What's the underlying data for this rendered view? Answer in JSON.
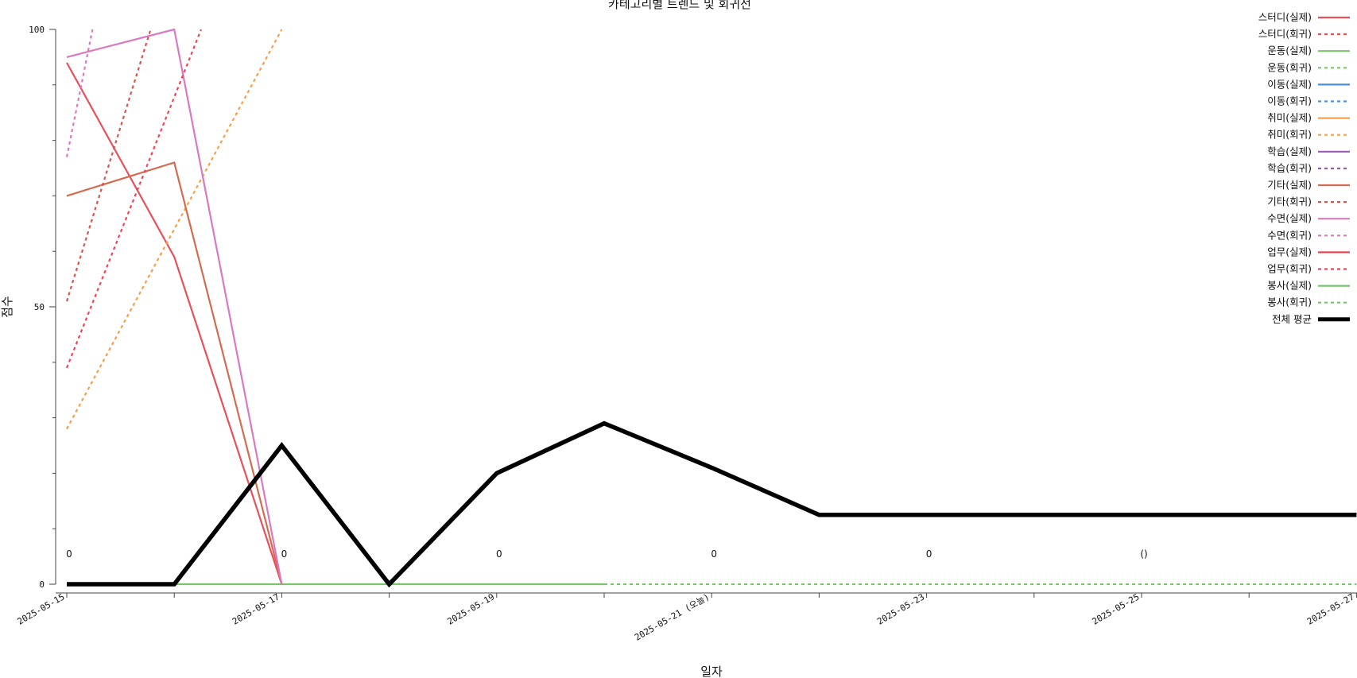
{
  "chart_data": {
    "type": "line",
    "title": "카테고리별 트렌드 및 회귀선",
    "xlabel": "일자",
    "ylabel": "점수",
    "ylim": [
      0,
      100
    ],
    "yticks": [
      0,
      50,
      100
    ],
    "x_dates": [
      "2025-05-15",
      "2025-05-16",
      "2025-05-17",
      "2025-05-18",
      "2025-05-19",
      "2025-05-20",
      "2025-05-21",
      "2025-05-22",
      "2025-05-23",
      "2025-05-24",
      "2025-05-25",
      "2025-05-26",
      "2025-05-27"
    ],
    "x_tick_labels": [
      {
        "date": "2025-05-15",
        "label": "2025-05-15"
      },
      {
        "date": "2025-05-17",
        "label": "2025-05-17"
      },
      {
        "date": "2025-05-19",
        "label": "2025-05-19"
      },
      {
        "date": "2025-05-21",
        "label": "2025-05-21 (오늘)"
      },
      {
        "date": "2025-05-23",
        "label": "2025-05-23"
      },
      {
        "date": "2025-05-25",
        "label": "2025-05-25"
      },
      {
        "date": "2025-05-27",
        "label": "2025-05-27"
      }
    ],
    "zero_annotations": [
      {
        "date": "2025-05-15",
        "text": "0"
      },
      {
        "date": "2025-05-17",
        "text": "0"
      },
      {
        "date": "2025-05-19",
        "text": "0"
      },
      {
        "date": "2025-05-21",
        "text": "0"
      },
      {
        "date": "2025-05-23",
        "text": "0"
      },
      {
        "date": "2025-05-25",
        "text": "()"
      }
    ],
    "legend_position": "top-right",
    "grid": false,
    "series": [
      {
        "name": "스터디(실제)",
        "color": "#e8505b",
        "style": "solid",
        "x": [
          "2025-05-15",
          "2025-05-16",
          "2025-05-17"
        ],
        "y": [
          94,
          59,
          0
        ]
      },
      {
        "name": "스터디(회귀)",
        "color": "#e8505b",
        "style": "dashed",
        "x": [],
        "y": []
      },
      {
        "name": "운동(실제)",
        "color": "#7ac36a",
        "style": "solid",
        "x": [
          "2025-05-16",
          "2025-05-17",
          "2025-05-18",
          "2025-05-19",
          "2025-05-20"
        ],
        "y": [
          0,
          0,
          0,
          0,
          0
        ]
      },
      {
        "name": "운동(회귀)",
        "color": "#7ac36a",
        "style": "dashed",
        "x": [],
        "y": []
      },
      {
        "name": "이동(실제)",
        "color": "#4a90d9",
        "style": "solid",
        "x": [],
        "y": []
      },
      {
        "name": "이동(회귀)",
        "color": "#4a90d9",
        "style": "dashed",
        "x": [],
        "y": []
      },
      {
        "name": "취미(실제)",
        "color": "#f5a04a",
        "style": "solid",
        "x": [],
        "y": []
      },
      {
        "name": "취미(회귀)",
        "color": "#f5a04a",
        "style": "dashed",
        "x": [
          "2025-05-15",
          "2025-05-17"
        ],
        "y": [
          28,
          100
        ]
      },
      {
        "name": "학습(실제)",
        "color": "#9b59b6",
        "style": "solid",
        "x": [],
        "y": []
      },
      {
        "name": "학습(회귀)",
        "color": "#9b59b6",
        "style": "dashed",
        "x": [],
        "y": []
      },
      {
        "name": "기타(실제)",
        "color": "#d36b4f",
        "style": "solid",
        "x": [
          "2025-05-15",
          "2025-05-16",
          "2025-05-17"
        ],
        "y": [
          70,
          76,
          0
        ]
      },
      {
        "name": "기타(회귀)",
        "color": "#d9534f",
        "style": "dashed",
        "x": [
          "2025-05-15",
          "2025-05-15.78"
        ],
        "y": [
          51,
          100
        ]
      },
      {
        "name": "수면(실제)",
        "color": "#d97ac0",
        "style": "solid",
        "x": [
          "2025-05-15",
          "2025-05-16",
          "2025-05-17"
        ],
        "y": [
          95,
          100,
          0
        ]
      },
      {
        "name": "수면(회귀)",
        "color": "#d97ac0",
        "style": "dashed",
        "x": [
          "2025-05-15",
          "2025-05-15.24"
        ],
        "y": [
          77,
          100
        ]
      },
      {
        "name": "업무(실제)",
        "color": "#e04a55",
        "style": "solid",
        "x": [],
        "y": []
      },
      {
        "name": "업무(회귀)",
        "color": "#f0455a",
        "style": "dashed",
        "x": [
          "2025-05-15",
          "2025-05-16.25"
        ],
        "y": [
          39,
          100
        ]
      },
      {
        "name": "봉사(실제)",
        "color": "#7ac36a",
        "style": "solid",
        "x": [],
        "y": []
      },
      {
        "name": "봉사(회귀)",
        "color": "#7ac36a",
        "style": "dashed",
        "x": [
          "2025-05-20",
          "2025-05-27"
        ],
        "y": [
          0,
          0
        ]
      },
      {
        "name": "전체 평균",
        "color": "#000000",
        "style": "solid",
        "bold": true,
        "x": [
          "2025-05-15",
          "2025-05-16",
          "2025-05-17",
          "2025-05-18",
          "2025-05-19",
          "2025-05-20",
          "2025-05-21",
          "2025-05-22",
          "2025-05-23",
          "2025-05-24",
          "2025-05-25",
          "2025-05-26",
          "2025-05-27"
        ],
        "y": [
          0,
          0,
          25,
          0,
          20,
          29,
          21,
          12.5,
          12.5,
          12.5,
          12.5,
          12.5,
          12.5
        ]
      }
    ]
  }
}
